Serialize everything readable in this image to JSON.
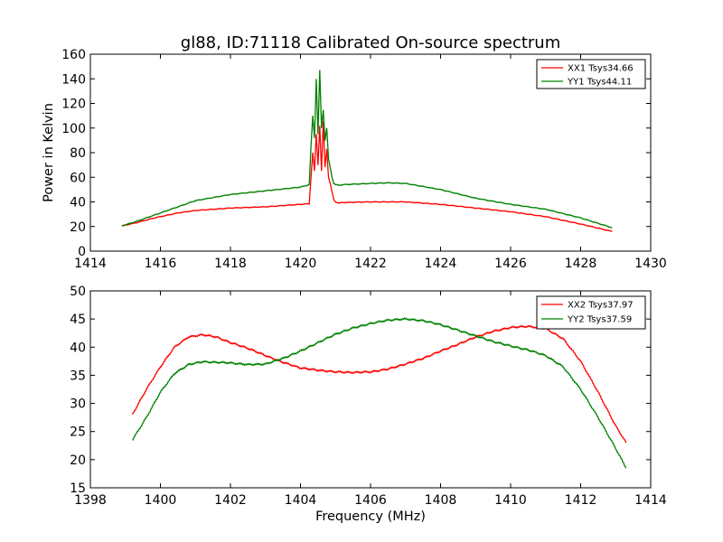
{
  "figure": {
    "title": "gl88, ID:71118 Calibrated On-source spectrum",
    "xlabel": "Frequency (MHz)",
    "ylabel": "Power in Kelvin"
  },
  "colors": {
    "red": "#ff0000",
    "green": "#008000"
  },
  "chart_data": [
    {
      "type": "line",
      "title": "gl88, ID:71118 Calibrated On-source spectrum",
      "xlabel": "",
      "ylabel": "Power in Kelvin",
      "xlim": [
        1414,
        1430
      ],
      "ylim": [
        0,
        160
      ],
      "xticks": [
        1414,
        1416,
        1418,
        1420,
        1422,
        1424,
        1426,
        1428,
        1430
      ],
      "yticks": [
        0,
        20,
        40,
        60,
        80,
        100,
        120,
        140,
        160
      ],
      "grid": false,
      "legend_position": "top-right",
      "series": [
        {
          "name": "XX1 Tsys34.66",
          "color": "#ff0000",
          "x": [
            1414.9,
            1415.3,
            1415.7,
            1416.0,
            1416.5,
            1417.0,
            1418.0,
            1419.0,
            1420.0,
            1420.25,
            1420.3,
            1420.35,
            1420.4,
            1420.45,
            1420.5,
            1420.55,
            1420.6,
            1420.65,
            1420.7,
            1420.75,
            1420.8,
            1420.85,
            1420.9,
            1420.95,
            1421.0,
            1421.1,
            1421.2,
            1422.0,
            1422.5,
            1423.0,
            1424.0,
            1425.0,
            1426.0,
            1427.0,
            1428.0,
            1428.9
          ],
          "y": [
            20.5,
            23,
            26,
            28,
            31,
            33,
            35,
            36,
            38,
            38.5,
            60,
            80,
            65,
            95,
            70,
            102,
            65,
            105,
            68,
            83,
            60,
            55,
            48,
            42,
            40,
            39,
            39.5,
            40,
            40,
            40,
            38,
            35,
            32,
            28,
            22,
            16
          ]
        },
        {
          "name": "YY1 Tsys44.11",
          "color": "#008000",
          "x": [
            1414.9,
            1415.3,
            1415.7,
            1416.0,
            1416.5,
            1417.0,
            1418.0,
            1419.0,
            1420.0,
            1420.25,
            1420.3,
            1420.35,
            1420.4,
            1420.45,
            1420.5,
            1420.55,
            1420.6,
            1420.65,
            1420.7,
            1420.75,
            1420.8,
            1420.85,
            1420.9,
            1420.95,
            1421.0,
            1421.1,
            1421.2,
            1422.0,
            1422.5,
            1423.0,
            1424.0,
            1425.0,
            1426.0,
            1427.0,
            1428.0,
            1428.9
          ],
          "y": [
            20.5,
            24,
            28,
            31,
            36,
            41,
            46,
            49,
            52,
            54,
            85,
            110,
            92,
            140,
            95,
            147,
            100,
            115,
            90,
            100,
            75,
            68,
            60,
            55,
            54,
            53.5,
            54,
            55,
            55.5,
            55,
            50,
            43,
            38,
            34,
            27,
            19
          ]
        }
      ]
    },
    {
      "type": "line",
      "title": "",
      "xlabel": "Frequency (MHz)",
      "ylabel": "",
      "xlim": [
        1398,
        1414
      ],
      "ylim": [
        15,
        50
      ],
      "xticks": [
        1398,
        1400,
        1402,
        1404,
        1406,
        1408,
        1410,
        1412,
        1414
      ],
      "yticks": [
        15,
        20,
        25,
        30,
        35,
        40,
        45,
        50
      ],
      "grid": false,
      "legend_position": "top-right",
      "series": [
        {
          "name": "XX2 Tsys37.97",
          "color": "#ff0000",
          "x": [
            1399.2,
            1399.6,
            1400.0,
            1400.4,
            1400.8,
            1401.2,
            1401.6,
            1402.0,
            1402.5,
            1403.0,
            1403.5,
            1404.0,
            1404.5,
            1405.0,
            1405.5,
            1406.0,
            1406.5,
            1407.0,
            1407.5,
            1408.0,
            1408.5,
            1409.0,
            1409.5,
            1410.0,
            1410.5,
            1411.0,
            1411.5,
            1412.0,
            1412.5,
            1413.0,
            1413.3
          ],
          "y": [
            28,
            32.5,
            36.5,
            40,
            41.8,
            42.2,
            41.8,
            40.8,
            39.8,
            38.5,
            37.3,
            36.3,
            35.9,
            35.6,
            35.5,
            35.6,
            36.1,
            37.0,
            38.0,
            39.3,
            40.5,
            41.8,
            42.8,
            43.5,
            43.7,
            43.3,
            41.5,
            37.5,
            32,
            26,
            23
          ]
        },
        {
          "name": "YY2 Tsys37.59",
          "color": "#008000",
          "x": [
            1399.2,
            1399.6,
            1400.0,
            1400.4,
            1400.8,
            1401.2,
            1401.6,
            1402.0,
            1402.5,
            1403.0,
            1403.5,
            1404.0,
            1404.5,
            1405.0,
            1405.5,
            1406.0,
            1406.5,
            1407.0,
            1407.5,
            1408.0,
            1408.5,
            1409.0,
            1409.5,
            1410.0,
            1410.5,
            1411.0,
            1411.5,
            1412.0,
            1412.5,
            1413.0,
            1413.3
          ],
          "y": [
            23.5,
            27.5,
            32,
            35.3,
            36.9,
            37.4,
            37.3,
            37.2,
            36.9,
            37.0,
            38.0,
            39.3,
            40.8,
            42.3,
            43.4,
            44.2,
            44.8,
            45.0,
            44.7,
            44.0,
            43.0,
            42.0,
            41.0,
            40.2,
            39.5,
            38.5,
            36.5,
            32.5,
            27.5,
            22,
            18.5
          ]
        }
      ]
    }
  ]
}
